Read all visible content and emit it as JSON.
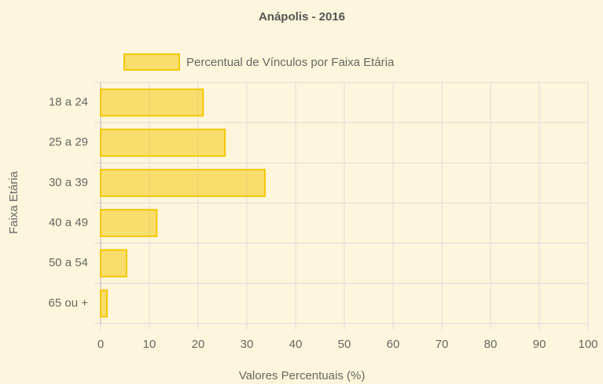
{
  "chart_data": {
    "type": "hbar",
    "title": "Anápolis - 2016",
    "categories": [
      "18 a 24",
      "25 a 29",
      "30 a 39",
      "40 a 49",
      "50 a 54",
      "65 ou +"
    ],
    "series": [
      {
        "name": "Percentual de Vínculos por Faixa Etária",
        "color": "#f5c800",
        "values": [
          21.0,
          25.5,
          33.7,
          11.5,
          5.3,
          1.3
        ]
      }
    ],
    "xlim": [
      0,
      100
    ],
    "xticks": [
      0,
      10,
      20,
      30,
      40,
      50,
      60,
      70,
      80,
      90,
      100
    ],
    "x_label": "Valores Percentuais (%)",
    "y_label": "Faixa Etária",
    "grid": true,
    "legend": "top"
  }
}
